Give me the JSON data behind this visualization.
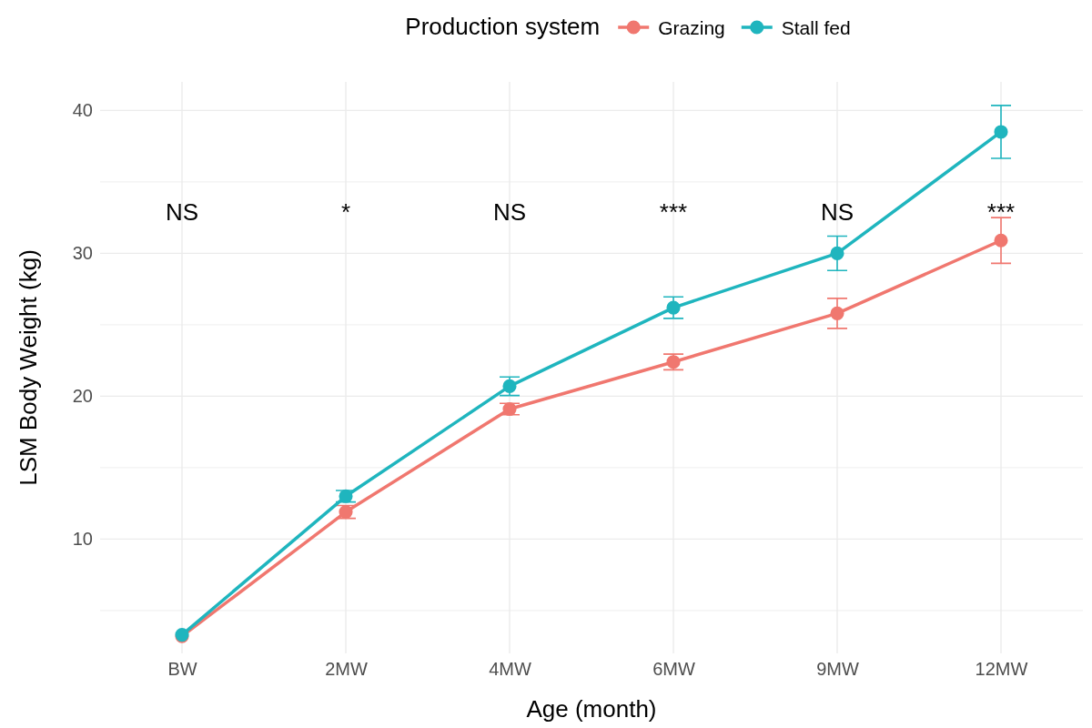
{
  "chart_data": {
    "type": "line",
    "xlabel": "Age (month)",
    "ylabel": "LSM Body Weight (kg)",
    "legend_title": "Production system",
    "legend": "top",
    "grid": true,
    "marker": "circle",
    "line_style": "solid",
    "categories": [
      "BW",
      "2MW",
      "4MW",
      "6MW",
      "9MW",
      "12MW"
    ],
    "ylim": [
      2,
      42
    ],
    "yticks": [
      {
        "value": 5,
        "label": null
      },
      10,
      {
        "value": 15,
        "label": null
      },
      20,
      {
        "value": 25,
        "label": null
      },
      30,
      {
        "value": 35,
        "label": null
      },
      40
    ],
    "series": [
      {
        "name": "Grazing",
        "color": "#f0776f",
        "values": [
          3.2,
          11.9,
          19.1,
          22.4,
          25.8,
          30.9
        ],
        "errors": [
          null,
          0.45,
          0.4,
          0.55,
          1.05,
          1.6
        ]
      },
      {
        "name": "Stall fed",
        "color": "#1fb5be",
        "values": [
          3.3,
          13.0,
          20.7,
          26.2,
          30.0,
          38.5
        ],
        "errors": [
          null,
          0.4,
          0.65,
          0.75,
          1.2,
          1.85
        ]
      }
    ],
    "annotations": [
      "NS",
      "*",
      "NS",
      "***",
      "NS",
      "***"
    ]
  }
}
